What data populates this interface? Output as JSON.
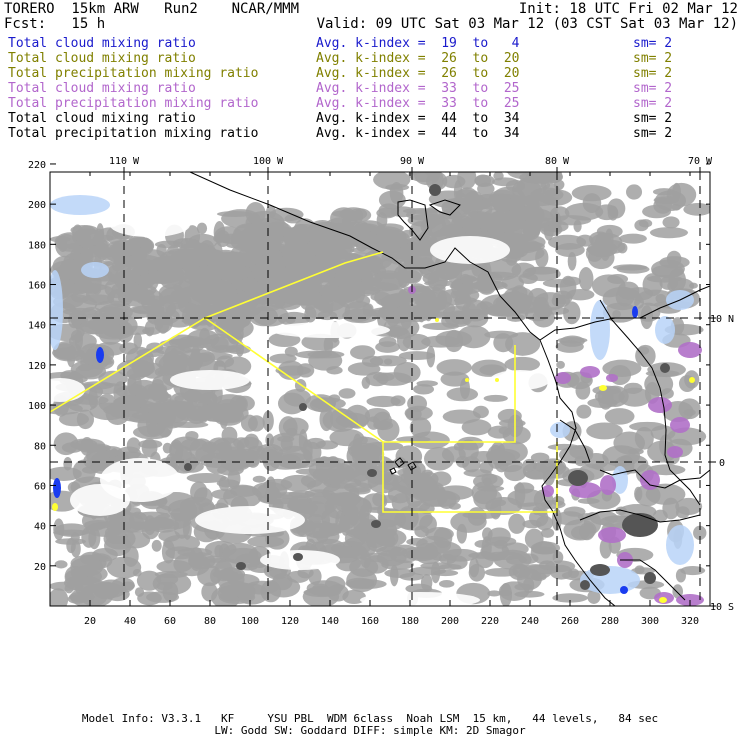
{
  "header": {
    "left_line1": "TORERO  15km ARW   Run2    NCAR/MMM",
    "left_line2": "Fcst:   15 h",
    "init": "Init: 18 UTC Fri 02 Mar 12",
    "valid": "Valid: 09 UTC Sat 03 Mar 12 (03 CST Sat 03 Mar 12)"
  },
  "legend": [
    {
      "field": "Total cloud mixing ratio",
      "kindex": "Avg. k-index =  19  to   4",
      "sm": "sm= 2",
      "color": "#1a1acc"
    },
    {
      "field": "Total cloud mixing ratio",
      "kindex": "Avg. k-index =  26  to  20",
      "sm": "sm= 2",
      "color": "#808000"
    },
    {
      "field": "Total precipitation mixing ratio",
      "kindex": "Avg. k-index =  26  to  20",
      "sm": "sm= 2",
      "color": "#808000"
    },
    {
      "field": "Total cloud mixing ratio",
      "kindex": "Avg. k-index =  33  to  25",
      "sm": "sm= 2",
      "color": "#b266cc"
    },
    {
      "field": "Total precipitation mixing ratio",
      "kindex": "Avg. k-index =  33  to  25",
      "sm": "sm= 2",
      "color": "#b266cc"
    },
    {
      "field": "Total cloud mixing ratio",
      "kindex": "Avg. k-index =  44  to  34",
      "sm": "sm= 2",
      "color": "#000000"
    },
    {
      "field": "Total precipitation mixing ratio",
      "kindex": "Avg. k-index =  44  to  34",
      "sm": "sm= 2",
      "color": "#000000"
    }
  ],
  "map": {
    "lon_labels": [
      "110 W",
      "100 W",
      "90 W",
      "80 W",
      "70 W"
    ],
    "lat_labels": [
      "10 N",
      "0",
      "10 S"
    ],
    "x_ticks": [
      "20",
      "40",
      "60",
      "80",
      "100",
      "120",
      "140",
      "160",
      "180",
      "200",
      "220",
      "240",
      "260",
      "280",
      "300",
      "320"
    ],
    "y_ticks": [
      "20",
      "40",
      "60",
      "80",
      "100",
      "120",
      "140",
      "160",
      "180",
      "200",
      "220"
    ],
    "colors": {
      "cloud_gray": "#a0a0a0",
      "cloud_dark": "#555555",
      "light_blue": "#b8d4f8",
      "blue": "#1a3cf0",
      "purple": "#b070c8",
      "yellow": "#ffff33",
      "coast": "#000000"
    }
  },
  "footer": {
    "line1": "Model Info: V3.3.1   KF     YSU PBL  WDM 6class  Noah LSM  15 km,   44 levels,   84 sec",
    "line2": "LW: Godd SW: Goddard DIFF: simple KM: 2D Smagor"
  }
}
